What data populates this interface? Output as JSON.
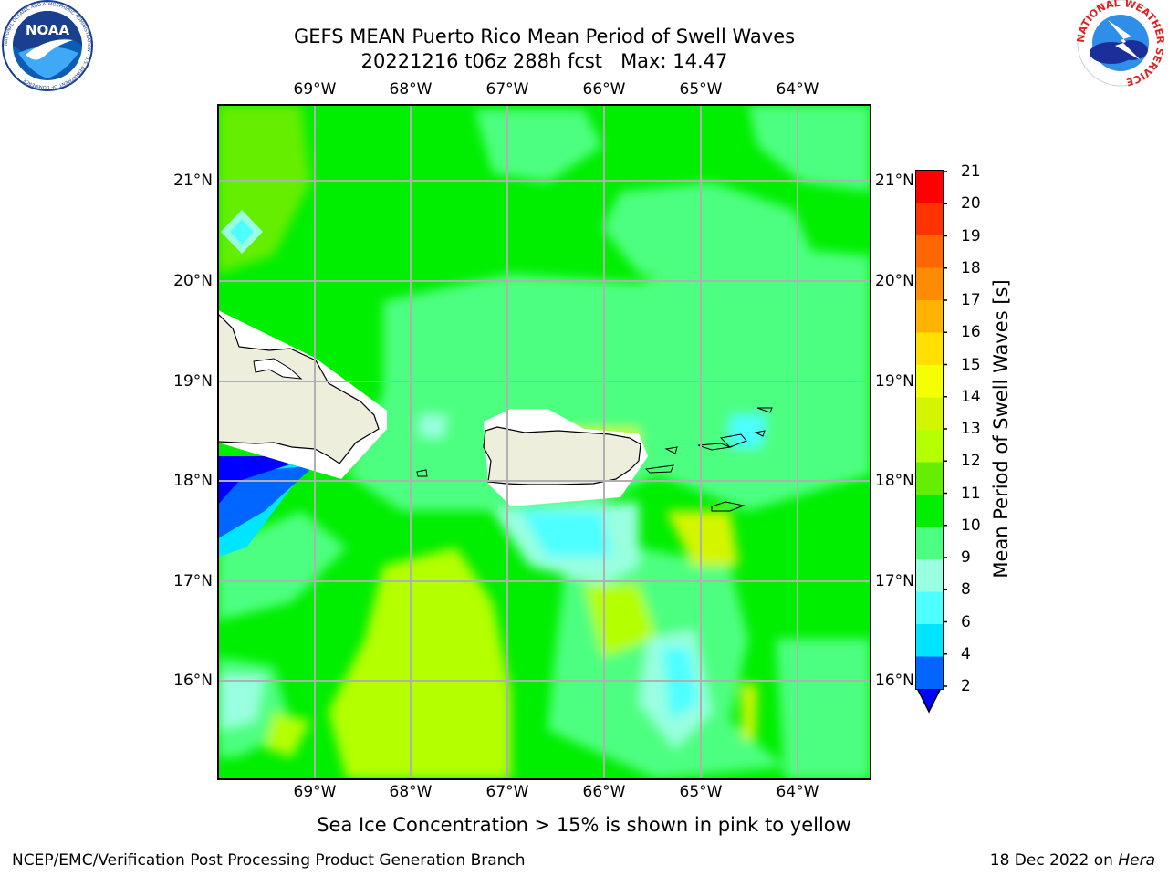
{
  "header": {
    "title_line1": "GEFS MEAN Puerto Rico Mean Period of Swell Waves",
    "title_line2": "20221216 t06z 288h fcst   Max: 14.47"
  },
  "logos": {
    "left": {
      "icon": "noaa-logo",
      "text": "NOAA",
      "ring_text": "NATIONAL OCEANIC AND ATMOSPHERIC ADMINISTRATION · U.S. DEPARTMENT OF COMMERCE"
    },
    "right": {
      "icon": "nws-logo",
      "ring_text": "NATIONAL WEATHER SERVICE"
    }
  },
  "map": {
    "lon_ticks": [
      "69°W",
      "68°W",
      "67°W",
      "66°W",
      "65°W",
      "64°W"
    ],
    "lat_ticks": [
      "21°N",
      "20°N",
      "19°N",
      "18°N",
      "17°N",
      "16°N"
    ],
    "land_color": "#eeeedc",
    "gridline_color": "#b0b0b0"
  },
  "colorbar": {
    "label": "Mean Period of Swell Waves [s]",
    "ticks": [
      "21",
      "20",
      "19",
      "18",
      "17",
      "16",
      "15",
      "14",
      "13",
      "12",
      "11",
      "10",
      "9",
      "8",
      "6",
      "4",
      "2"
    ],
    "colors": [
      "#ff0000",
      "#ff3300",
      "#ff6600",
      "#ff8c00",
      "#ffb300",
      "#ffe000",
      "#f5ff00",
      "#d4f500",
      "#b4ff00",
      "#66ee00",
      "#00ee00",
      "#4dff80",
      "#99ffe0",
      "#4dffff",
      "#00e5ff",
      "#0066ff",
      "#0000ff"
    ]
  },
  "note": "Sea Ice Concentration > 15% is shown in pink to yellow",
  "footer": {
    "left": "NCEP/EMC/Verification Post Processing Product Generation Branch",
    "right_prefix": "18 Dec 2022 on ",
    "right_host": "Hera"
  }
}
